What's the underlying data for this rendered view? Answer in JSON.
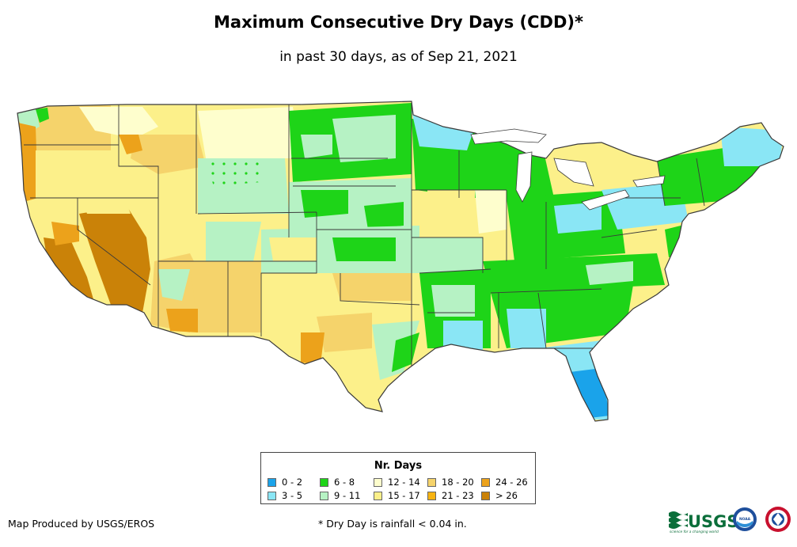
{
  "title": "Maximum Consecutive Dry Days (CDD)*",
  "subtitle": "in past 30 days, as of Sep 21, 2021",
  "legend": {
    "title": "Nr. Days",
    "items": [
      {
        "label": "0 - 2",
        "color": "#1aa3ea"
      },
      {
        "label": "6 - 8",
        "color": "#1ed418"
      },
      {
        "label": "12 - 14",
        "color": "#fefecd"
      },
      {
        "label": "18 - 20",
        "color": "#f5d36b"
      },
      {
        "label": "24 - 26",
        "color": "#eca21b"
      },
      {
        "label": "3 - 5",
        "color": "#8ae6f5"
      },
      {
        "label": "9 - 11",
        "color": "#b6f2c4"
      },
      {
        "label": "15 - 17",
        "color": "#fcf08a"
      },
      {
        "label": "21 - 23",
        "color": "#f7b311"
      },
      {
        "label": "> 26",
        "color": "#ca8208"
      }
    ]
  },
  "footer": {
    "credit": "Map Produced by USGS/EROS",
    "note": "* Dry Day is rainfall < 0.04 in."
  },
  "logos": {
    "usgs": "USGS",
    "usgs_tagline": "science for a changing world",
    "noaa": "NOAA"
  },
  "colors": {
    "boundary": "#3a3a3a",
    "land_base": "#fcf08a",
    "usgs_green": "#0b6e3a"
  }
}
